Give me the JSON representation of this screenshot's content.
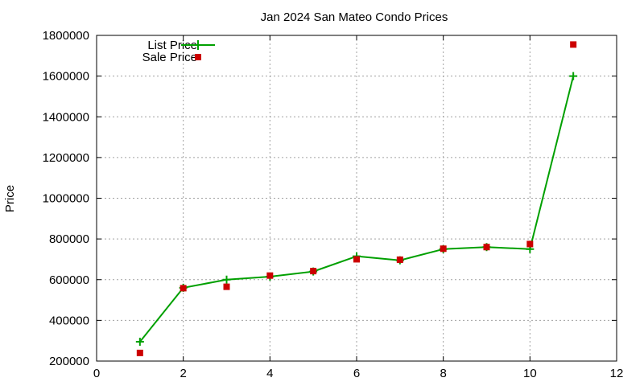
{
  "chart_data": {
    "type": "line",
    "title": "Jan 2024 San Mateo Condo Prices",
    "xlabel": "",
    "ylabel": "Price",
    "xlim": [
      0,
      12
    ],
    "ylim": [
      200000,
      1800000
    ],
    "x_ticks": [
      0,
      2,
      4,
      6,
      8,
      10,
      12
    ],
    "y_ticks": [
      200000,
      400000,
      600000,
      800000,
      1000000,
      1200000,
      1400000,
      1600000,
      1800000
    ],
    "grid": true,
    "legend_position": "top-left",
    "series": [
      {
        "name": "List Price",
        "style": "line-with-plus-markers",
        "color": "#00a000",
        "x": [
          1,
          2,
          3,
          4,
          5,
          6,
          7,
          8,
          9,
          10,
          11
        ],
        "y": [
          295000,
          560000,
          600000,
          615000,
          640000,
          715000,
          695000,
          750000,
          760000,
          750000,
          1600000
        ]
      },
      {
        "name": "Sale Price",
        "style": "square-markers",
        "color": "#cc0000",
        "x": [
          1,
          2,
          3,
          4,
          5,
          6,
          7,
          8,
          9,
          10,
          11
        ],
        "y": [
          240000,
          558000,
          565000,
          620000,
          642000,
          700000,
          698000,
          752000,
          760000,
          775000,
          1755000
        ]
      }
    ]
  }
}
